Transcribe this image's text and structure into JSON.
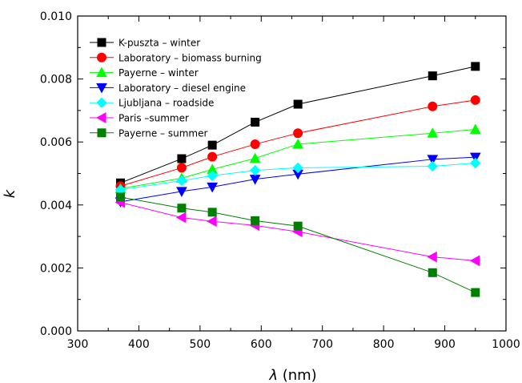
{
  "chart_data": {
    "type": "line",
    "xlabel_symbol": "λ",
    "xlabel_unit": "(nm)",
    "ylabel": "k",
    "xlim": [
      300,
      1000
    ],
    "ylim": [
      0.0,
      0.01
    ],
    "x_ticks": [
      "300",
      "400",
      "500",
      "600",
      "700",
      "800",
      "900",
      "1000"
    ],
    "y_ticks": [
      "0.000",
      "0.002",
      "0.004",
      "0.006",
      "0.008",
      "0.010"
    ],
    "grid": false,
    "legend_position": "top-left",
    "series": [
      {
        "name": "K-puszta – winter",
        "color": "#000000",
        "marker": "square",
        "x": [
          370,
          470,
          520,
          590,
          660,
          880,
          950
        ],
        "y": [
          0.0047,
          0.00547,
          0.0059,
          0.00663,
          0.0072,
          0.0081,
          0.0084
        ]
      },
      {
        "name": "Laboratory – biomass burning",
        "color": "#ff0000",
        "marker": "circle",
        "x": [
          370,
          470,
          520,
          590,
          660,
          880,
          950
        ],
        "y": [
          0.0046,
          0.00518,
          0.00553,
          0.00593,
          0.00628,
          0.00713,
          0.00733
        ]
      },
      {
        "name": "Payerne – winter",
        "color": "#00ff00",
        "marker": "triangle-up",
        "x": [
          370,
          470,
          520,
          590,
          660,
          880,
          950
        ],
        "y": [
          0.00452,
          0.00485,
          0.00513,
          0.00548,
          0.00593,
          0.00628,
          0.0064
        ]
      },
      {
        "name": "Laboratory – diesel engine",
        "color": "#0000ff",
        "marker": "triangle-down",
        "x": [
          370,
          470,
          520,
          590,
          660,
          880,
          950
        ],
        "y": [
          0.0041,
          0.00443,
          0.00457,
          0.00482,
          0.00498,
          0.00545,
          0.00552
        ]
      },
      {
        "name": "Ljubljana – roadside",
        "color": "#00ffff",
        "marker": "diamond",
        "x": [
          370,
          470,
          520,
          590,
          660,
          880,
          950
        ],
        "y": [
          0.00448,
          0.00477,
          0.00493,
          0.0051,
          0.00518,
          0.00523,
          0.00533
        ]
      },
      {
        "name": "Paris –summer",
        "color": "#ff00ff",
        "marker": "triangle-left",
        "x": [
          370,
          470,
          520,
          590,
          660,
          880,
          950
        ],
        "y": [
          0.00408,
          0.0036,
          0.00348,
          0.00335,
          0.00315,
          0.00235,
          0.00223
        ]
      },
      {
        "name": "Payerne – summer",
        "color": "#008000",
        "marker": "square",
        "x": [
          370,
          470,
          520,
          590,
          660,
          880,
          950
        ],
        "y": [
          0.00425,
          0.0039,
          0.00377,
          0.0035,
          0.00333,
          0.00185,
          0.00122
        ]
      }
    ]
  }
}
